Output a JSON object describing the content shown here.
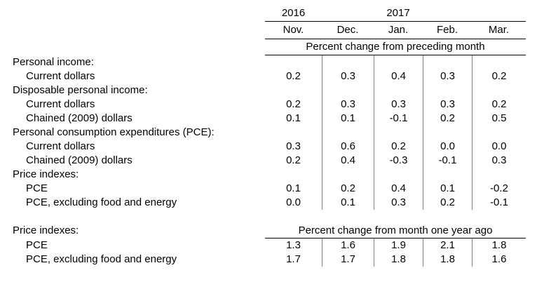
{
  "table": {
    "years": [
      "2016",
      "2017"
    ],
    "months": [
      "Nov.",
      "Dec.",
      "Jan.",
      "Feb.",
      "Mar."
    ],
    "section1": {
      "header": "Percent change from preceding month",
      "rows": [
        {
          "label": "Personal income:",
          "values": [
            "",
            "",
            "",
            "",
            ""
          ]
        },
        {
          "label": "Current dollars",
          "values": [
            "0.2",
            "0.3",
            "0.4",
            "0.3",
            "0.2"
          ]
        },
        {
          "label": "Disposable personal income:",
          "values": [
            "",
            "",
            "",
            "",
            ""
          ]
        },
        {
          "label": "Current dollars",
          "values": [
            "0.2",
            "0.3",
            "0.3",
            "0.3",
            "0.2"
          ]
        },
        {
          "label": "Chained (2009) dollars",
          "values": [
            "0.1",
            "0.1",
            "-0.1",
            "0.2",
            "0.5"
          ]
        },
        {
          "label": "Personal consumption expenditures (PCE):",
          "values": [
            "",
            "",
            "",
            "",
            ""
          ]
        },
        {
          "label": "Current dollars",
          "values": [
            "0.3",
            "0.6",
            "0.2",
            "0.0",
            "0.0"
          ]
        },
        {
          "label": "Chained (2009) dollars",
          "values": [
            "0.2",
            "0.4",
            "-0.3",
            "-0.1",
            "0.3"
          ]
        },
        {
          "label": "Price indexes:",
          "values": [
            "",
            "",
            "",
            "",
            ""
          ]
        },
        {
          "label": "PCE",
          "values": [
            "0.1",
            "0.2",
            "0.4",
            "0.1",
            "-0.2"
          ]
        },
        {
          "label": "PCE, excluding food and energy",
          "values": [
            "0.0",
            "0.1",
            "0.3",
            "0.2",
            "-0.1"
          ]
        }
      ]
    },
    "section2": {
      "label": "Price indexes:",
      "header": "Percent change from month one year ago",
      "rows": [
        {
          "label": "PCE",
          "values": [
            "1.3",
            "1.6",
            "1.9",
            "2.1",
            "1.8"
          ]
        },
        {
          "label": "PCE, excluding food and energy",
          "values": [
            "1.7",
            "1.7",
            "1.8",
            "1.8",
            "1.6"
          ]
        }
      ]
    },
    "colors": {
      "text": "#000000",
      "background": "#ffffff",
      "horizontal_rule": "#000000",
      "vertical_rule": "#7f7f7f"
    }
  }
}
